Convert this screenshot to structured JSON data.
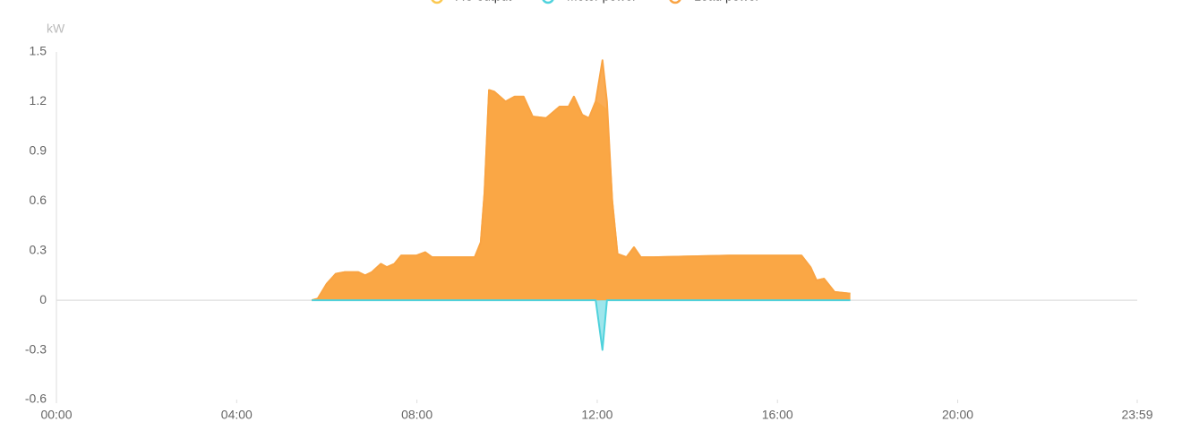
{
  "chart_data": {
    "type": "area",
    "y_axis_label": "kW",
    "x": [
      340,
      348,
      360,
      372,
      384,
      402,
      411,
      420,
      432,
      440,
      450,
      459,
      479,
      491,
      500,
      515,
      557,
      565,
      570,
      576,
      583,
      598,
      610,
      622,
      634,
      652,
      670,
      682,
      689,
      700,
      709,
      718,
      727,
      733,
      740,
      747,
      759,
      769,
      778,
      795,
      896,
      992,
      1004,
      1012,
      1022,
      1036,
      1057
    ],
    "series": [
      {
        "name": "AC output",
        "color": "#fbc850",
        "values": [
          0,
          0.01,
          0.1,
          0.16,
          0.17,
          0.17,
          0.15,
          0.17,
          0.22,
          0.2,
          0.22,
          0.27,
          0.27,
          0.29,
          0.26,
          0.26,
          0.26,
          0.35,
          0.65,
          1.27,
          1.26,
          1.2,
          1.23,
          1.23,
          1.11,
          1.1,
          1.17,
          1.17,
          1.23,
          1.12,
          1.1,
          1.2,
          1.17,
          1.15,
          0.6,
          0.28,
          0.26,
          0.32,
          0.26,
          0.26,
          0.27,
          0.27,
          0.2,
          0.12,
          0.13,
          0.05,
          0.04
        ]
      },
      {
        "name": "Meter power",
        "color": "#4fd2dc",
        "values": [
          0,
          0,
          0,
          0,
          0,
          0,
          0,
          0,
          0,
          0,
          0,
          0,
          0,
          0,
          0,
          0,
          0,
          0,
          0,
          0,
          0,
          0,
          0,
          0,
          0,
          0,
          0,
          0,
          0,
          0,
          0,
          0,
          -0.3,
          0,
          0,
          0,
          0,
          0,
          0,
          0,
          0,
          0,
          0,
          0,
          0,
          0,
          0
        ]
      },
      {
        "name": "Load power",
        "color": "#f9a343",
        "values": [
          0,
          0.01,
          0.1,
          0.16,
          0.17,
          0.17,
          0.15,
          0.17,
          0.22,
          0.2,
          0.22,
          0.27,
          0.27,
          0.29,
          0.26,
          0.26,
          0.26,
          0.35,
          0.65,
          1.27,
          1.26,
          1.2,
          1.23,
          1.23,
          1.11,
          1.1,
          1.17,
          1.17,
          1.23,
          1.12,
          1.1,
          1.2,
          1.45,
          1.2,
          0.6,
          0.28,
          0.26,
          0.32,
          0.26,
          0.26,
          0.27,
          0.27,
          0.2,
          0.12,
          0.13,
          0.05,
          0.04
        ]
      }
    ],
    "xlim": [
      0,
      1439
    ],
    "xticks": [
      {
        "value": 0,
        "label": "00:00"
      },
      {
        "value": 240,
        "label": "04:00"
      },
      {
        "value": 480,
        "label": "08:00"
      },
      {
        "value": 720,
        "label": "12:00"
      },
      {
        "value": 960,
        "label": "16:00"
      },
      {
        "value": 1200,
        "label": "20:00"
      },
      {
        "value": 1439,
        "label": "23:59"
      }
    ],
    "ylim": [
      -0.6,
      1.5
    ],
    "yticks": [
      1.5,
      1.2,
      0.9,
      0.6,
      0.3,
      0,
      -0.3,
      -0.6
    ],
    "grid": false,
    "legend": "top"
  }
}
